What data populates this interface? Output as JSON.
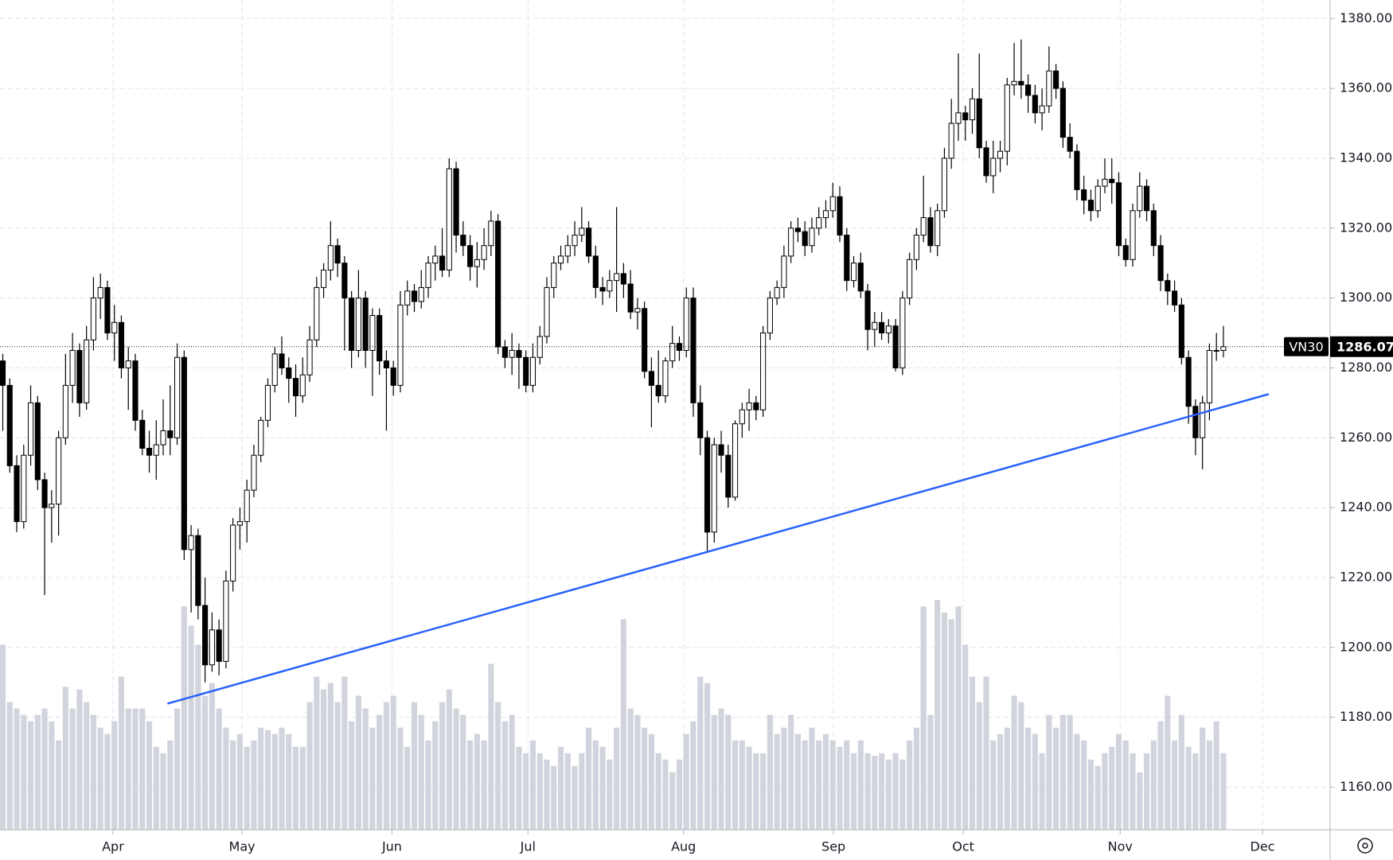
{
  "chart_data": {
    "type": "candlestick",
    "symbol": "VN30",
    "xlim": [
      -0.4,
      190.3
    ],
    "xticks": [
      {
        "value": 15.8,
        "label": "Apr"
      },
      {
        "value": 34.3,
        "label": "May"
      },
      {
        "value": 55.8,
        "label": "Jun"
      },
      {
        "value": 75.3,
        "label": "Jul"
      },
      {
        "value": 97.6,
        "label": "Aug"
      },
      {
        "value": 119.1,
        "label": "Sep"
      },
      {
        "value": 137.7,
        "label": "Oct"
      },
      {
        "value": 160.2,
        "label": "Nov"
      },
      {
        "value": 180.6,
        "label": "Dec"
      }
    ],
    "ylim": [
      1147.8,
      1385.3
    ],
    "yticks": [
      {
        "value": 1160,
        "label": "1160.00"
      },
      {
        "value": 1180,
        "label": "1180.00"
      },
      {
        "value": 1200,
        "label": "1200.00"
      },
      {
        "value": 1220,
        "label": "1220.00"
      },
      {
        "value": 1240,
        "label": "1240.00"
      },
      {
        "value": 1260,
        "label": "1260.00"
      },
      {
        "value": 1280,
        "label": "1280.00"
      },
      {
        "value": 1300,
        "label": "1300.00"
      },
      {
        "value": 1320,
        "label": "1320.00"
      },
      {
        "value": 1340,
        "label": "1340.00"
      },
      {
        "value": 1360,
        "label": "1360.00"
      },
      {
        "value": 1380,
        "label": "1380.00"
      }
    ],
    "volume_lim": [
      0,
      650
    ],
    "grid": true,
    "up_color": "#ffffff",
    "down_color": "#000000",
    "volume_color": "#d1d4dc",
    "trendline": {
      "x": [
        23.6,
        181.5
      ],
      "y": [
        1183.9,
        1272.5
      ],
      "color": "#2962ff"
    },
    "candles": [
      [
        1282,
        1284,
        1262,
        1275,
        145
      ],
      [
        1275,
        1277,
        1250,
        1252,
        100
      ],
      [
        1252,
        1255,
        1233,
        1236,
        95
      ],
      [
        1236,
        1258,
        1234,
        1255,
        90
      ],
      [
        1255,
        1275,
        1252,
        1270,
        85
      ],
      [
        1270,
        1272,
        1245,
        1248,
        90
      ],
      [
        1248,
        1250,
        1215,
        1240,
        95
      ],
      [
        1240,
        1245,
        1230,
        1241,
        85
      ],
      [
        1241,
        1262,
        1232,
        1260,
        70
      ],
      [
        1260,
        1284,
        1258,
        1275,
        112
      ],
      [
        1275,
        1290,
        1270,
        1285,
        95
      ],
      [
        1285,
        1287,
        1266,
        1270,
        110
      ],
      [
        1270,
        1292,
        1268,
        1288,
        100
      ],
      [
        1288,
        1306,
        1285,
        1300,
        90
      ],
      [
        1300,
        1307,
        1294,
        1303,
        80
      ],
      [
        1303,
        1305,
        1288,
        1290,
        75
      ],
      [
        1290,
        1298,
        1282,
        1293,
        85
      ],
      [
        1293,
        1295,
        1277,
        1280,
        120
      ],
      [
        1280,
        1286,
        1268,
        1282,
        95
      ],
      [
        1282,
        1284,
        1262,
        1265,
        95
      ],
      [
        1265,
        1268,
        1255,
        1257,
        95
      ],
      [
        1257,
        1262,
        1250,
        1255,
        85
      ],
      [
        1255,
        1265,
        1248,
        1258,
        65
      ],
      [
        1258,
        1271,
        1255,
        1262,
        60
      ],
      [
        1262,
        1275,
        1255,
        1260,
        70
      ],
      [
        1260,
        1287,
        1258,
        1283,
        95
      ],
      [
        1283,
        1285,
        1225,
        1228,
        175
      ],
      [
        1228,
        1235,
        1210,
        1232,
        160
      ],
      [
        1232,
        1234,
        1208,
        1212,
        145
      ],
      [
        1212,
        1220,
        1190,
        1195,
        105
      ],
      [
        1195,
        1210,
        1193,
        1205,
        115
      ],
      [
        1205,
        1208,
        1192,
        1196,
        95
      ],
      [
        1196,
        1222,
        1194,
        1219,
        80
      ],
      [
        1219,
        1237,
        1216,
        1235,
        70
      ],
      [
        1235,
        1240,
        1228,
        1236,
        75
      ],
      [
        1236,
        1248,
        1230,
        1245,
        65
      ],
      [
        1245,
        1258,
        1243,
        1255,
        70
      ],
      [
        1255,
        1266,
        1253,
        1265,
        80
      ],
      [
        1265,
        1277,
        1263,
        1275,
        78
      ],
      [
        1275,
        1286,
        1273,
        1284,
        75
      ],
      [
        1284,
        1289,
        1278,
        1280,
        80
      ],
      [
        1280,
        1283,
        1270,
        1277,
        75
      ],
      [
        1277,
        1281,
        1266,
        1272,
        65
      ],
      [
        1272,
        1283,
        1270,
        1278,
        65
      ],
      [
        1278,
        1292,
        1276,
        1288,
        100
      ],
      [
        1288,
        1306,
        1286,
        1303,
        120
      ],
      [
        1303,
        1310,
        1300,
        1308,
        110
      ],
      [
        1308,
        1322,
        1305,
        1315,
        115
      ],
      [
        1315,
        1317,
        1306,
        1310,
        100
      ],
      [
        1310,
        1312,
        1285,
        1300,
        120
      ],
      [
        1300,
        1302,
        1280,
        1285,
        85
      ],
      [
        1285,
        1308,
        1283,
        1300,
        105
      ],
      [
        1300,
        1302,
        1280,
        1285,
        95
      ],
      [
        1285,
        1297,
        1272,
        1295,
        80
      ],
      [
        1295,
        1297,
        1278,
        1282,
        90
      ],
      [
        1282,
        1285,
        1262,
        1280,
        100
      ],
      [
        1280,
        1282,
        1272,
        1275,
        105
      ],
      [
        1275,
        1302,
        1273,
        1298,
        80
      ],
      [
        1298,
        1305,
        1295,
        1302,
        65
      ],
      [
        1302,
        1304,
        1296,
        1299,
        100
      ],
      [
        1299,
        1308,
        1297,
        1303,
        90
      ],
      [
        1303,
        1312,
        1300,
        1310,
        70
      ],
      [
        1310,
        1315,
        1305,
        1312,
        85
      ],
      [
        1312,
        1320,
        1306,
        1308,
        100
      ],
      [
        1308,
        1340,
        1306,
        1337,
        110
      ],
      [
        1337,
        1339,
        1313,
        1318,
        95
      ],
      [
        1318,
        1322,
        1312,
        1315,
        90
      ],
      [
        1315,
        1318,
        1305,
        1309,
        70
      ],
      [
        1309,
        1316,
        1303,
        1311,
        75
      ],
      [
        1311,
        1320,
        1308,
        1315,
        70
      ],
      [
        1315,
        1325,
        1312,
        1322,
        130
      ],
      [
        1322,
        1324,
        1284,
        1286,
        100
      ],
      [
        1286,
        1288,
        1280,
        1283,
        85
      ],
      [
        1283,
        1290,
        1278,
        1285,
        90
      ],
      [
        1285,
        1287,
        1274,
        1283,
        65
      ],
      [
        1283,
        1285,
        1273,
        1275,
        60
      ],
      [
        1275,
        1287,
        1273,
        1283,
        70
      ],
      [
        1283,
        1292,
        1281,
        1289,
        60
      ],
      [
        1289,
        1306,
        1287,
        1303,
        55
      ],
      [
        1303,
        1312,
        1300,
        1310,
        50
      ],
      [
        1310,
        1315,
        1308,
        1312,
        65
      ],
      [
        1312,
        1318,
        1310,
        1315,
        60
      ],
      [
        1315,
        1322,
        1312,
        1318,
        50
      ],
      [
        1318,
        1326,
        1316,
        1320,
        60
      ],
      [
        1320,
        1322,
        1310,
        1312,
        80
      ],
      [
        1312,
        1315,
        1300,
        1303,
        70
      ],
      [
        1303,
        1306,
        1298,
        1302,
        65
      ],
      [
        1302,
        1308,
        1300,
        1305,
        55
      ],
      [
        1305,
        1326,
        1296,
        1307,
        80
      ],
      [
        1307,
        1310,
        1300,
        1304,
        165
      ],
      [
        1304,
        1308,
        1294,
        1296,
        95
      ],
      [
        1296,
        1300,
        1291,
        1297,
        90
      ],
      [
        1297,
        1299,
        1277,
        1279,
        80
      ],
      [
        1279,
        1283,
        1263,
        1275,
        75
      ],
      [
        1275,
        1285,
        1270,
        1272,
        60
      ],
      [
        1272,
        1283,
        1270,
        1282,
        55
      ],
      [
        1282,
        1292,
        1280,
        1287,
        45
      ],
      [
        1287,
        1289,
        1282,
        1285,
        55
      ],
      [
        1285,
        1303,
        1283,
        1300,
        75
      ],
      [
        1300,
        1303,
        1266,
        1270,
        85
      ],
      [
        1270,
        1275,
        1255,
        1260,
        120
      ],
      [
        1260,
        1262,
        1227,
        1233,
        115
      ],
      [
        1233,
        1260,
        1230,
        1258,
        90
      ],
      [
        1258,
        1262,
        1250,
        1255,
        95
      ],
      [
        1255,
        1258,
        1240,
        1243,
        90
      ],
      [
        1243,
        1265,
        1242,
        1264,
        70
      ],
      [
        1264,
        1270,
        1260,
        1268,
        70
      ],
      [
        1268,
        1274,
        1262,
        1270,
        65
      ],
      [
        1270,
        1272,
        1265,
        1268,
        60
      ],
      [
        1268,
        1292,
        1266,
        1290,
        60
      ],
      [
        1290,
        1302,
        1288,
        1300,
        90
      ],
      [
        1300,
        1305,
        1298,
        1303,
        75
      ],
      [
        1303,
        1315,
        1300,
        1312,
        80
      ],
      [
        1312,
        1322,
        1310,
        1320,
        90
      ],
      [
        1320,
        1323,
        1316,
        1319,
        75
      ],
      [
        1319,
        1322,
        1312,
        1315,
        70
      ],
      [
        1315,
        1323,
        1313,
        1320,
        80
      ],
      [
        1320,
        1326,
        1318,
        1323,
        70
      ],
      [
        1323,
        1328,
        1320,
        1325,
        75
      ],
      [
        1325,
        1333,
        1323,
        1329,
        70
      ],
      [
        1329,
        1332,
        1316,
        1318,
        65
      ],
      [
        1318,
        1320,
        1302,
        1305,
        70
      ],
      [
        1305,
        1312,
        1303,
        1310,
        60
      ],
      [
        1310,
        1313,
        1300,
        1302,
        70
      ],
      [
        1302,
        1304,
        1285,
        1291,
        60
      ],
      [
        1291,
        1296,
        1286,
        1293,
        58
      ],
      [
        1293,
        1296,
        1288,
        1290,
        60
      ],
      [
        1290,
        1294,
        1287,
        1292,
        55
      ],
      [
        1292,
        1294,
        1279,
        1280,
        60
      ],
      [
        1280,
        1302,
        1278,
        1300,
        55
      ],
      [
        1300,
        1313,
        1298,
        1311,
        70
      ],
      [
        1311,
        1320,
        1308,
        1318,
        80
      ],
      [
        1318,
        1335,
        1316,
        1323,
        175
      ],
      [
        1323,
        1326,
        1313,
        1315,
        90
      ],
      [
        1315,
        1327,
        1312,
        1325,
        180
      ],
      [
        1325,
        1343,
        1323,
        1340,
        170
      ],
      [
        1340,
        1357,
        1337,
        1350,
        165
      ],
      [
        1350,
        1370,
        1345,
        1353,
        175
      ],
      [
        1353,
        1355,
        1345,
        1351,
        145
      ],
      [
        1351,
        1360,
        1347,
        1357,
        120
      ],
      [
        1357,
        1370,
        1340,
        1343,
        100
      ],
      [
        1343,
        1345,
        1333,
        1335,
        120
      ],
      [
        1335,
        1345,
        1330,
        1340,
        70
      ],
      [
        1340,
        1345,
        1336,
        1342,
        75
      ],
      [
        1342,
        1363,
        1338,
        1361,
        80
      ],
      [
        1361,
        1373,
        1358,
        1362,
        105
      ],
      [
        1362,
        1374,
        1357,
        1361,
        100
      ],
      [
        1361,
        1364,
        1353,
        1358,
        80
      ],
      [
        1358,
        1361,
        1350,
        1353,
        75
      ],
      [
        1353,
        1360,
        1348,
        1355,
        60
      ],
      [
        1355,
        1372,
        1353,
        1365,
        90
      ],
      [
        1365,
        1367,
        1357,
        1360,
        80
      ],
      [
        1360,
        1362,
        1343,
        1346,
        90
      ],
      [
        1346,
        1350,
        1340,
        1342,
        90
      ],
      [
        1342,
        1344,
        1328,
        1331,
        75
      ],
      [
        1331,
        1335,
        1324,
        1328,
        70
      ],
      [
        1328,
        1331,
        1322,
        1325,
        55
      ],
      [
        1325,
        1334,
        1323,
        1332,
        50
      ],
      [
        1332,
        1340,
        1330,
        1334,
        60
      ],
      [
        1334,
        1340,
        1327,
        1333,
        65
      ],
      [
        1333,
        1336,
        1312,
        1315,
        75
      ],
      [
        1315,
        1317,
        1309,
        1311,
        70
      ],
      [
        1311,
        1327,
        1309,
        1325,
        60
      ],
      [
        1325,
        1336,
        1323,
        1332,
        45
      ],
      [
        1332,
        1334,
        1322,
        1325,
        60
      ],
      [
        1325,
        1327,
        1312,
        1315,
        70
      ],
      [
        1315,
        1318,
        1302,
        1305,
        85
      ],
      [
        1305,
        1307,
        1298,
        1302,
        105
      ],
      [
        1302,
        1305,
        1296,
        1298,
        70
      ],
      [
        1298,
        1300,
        1281,
        1283,
        90
      ],
      [
        1283,
        1285,
        1264,
        1269,
        65
      ],
      [
        1269,
        1271,
        1255,
        1260,
        60
      ],
      [
        1260,
        1272,
        1251,
        1270,
        80
      ],
      [
        1270,
        1287,
        1265,
        1285,
        70
      ],
      [
        1285,
        1290,
        1282,
        1285,
        85
      ],
      [
        1285,
        1292,
        1283,
        1286.07,
        60
      ]
    ]
  }
}
